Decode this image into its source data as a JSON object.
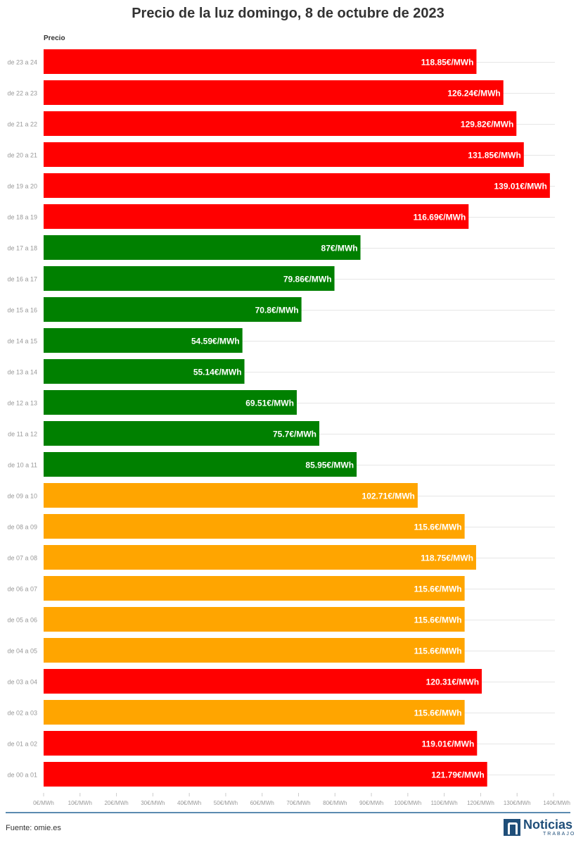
{
  "colors": {
    "red": "#ff0000",
    "green": "#008000",
    "orange": "#ffa500",
    "grid": "#e6e6e6",
    "text_muted": "#999999"
  },
  "chart_data": {
    "type": "bar",
    "orientation": "horizontal",
    "title": "Precio de la luz domingo, 8 de octubre de 2023",
    "series_label": "Precio",
    "xlim": [
      0,
      140
    ],
    "x_ticks": [
      0,
      10,
      20,
      30,
      40,
      50,
      60,
      70,
      80,
      90,
      100,
      110,
      120,
      130,
      140
    ],
    "x_tick_labels": [
      "0€/MWh",
      "10€/MWh",
      "20€/MWh",
      "30€/MWh",
      "40€/MWh",
      "50€/MWh",
      "60€/MWh",
      "70€/MWh",
      "80€/MWh",
      "90€/MWh",
      "100€/MWh",
      "110€/MWh",
      "120€/MWh",
      "130€/MWh",
      "140€/MWh"
    ],
    "grid": true,
    "categories": [
      "de 23 a 24",
      "de 22 a 23",
      "de 21 a 22",
      "de 20 a 21",
      "de 19 a 20",
      "de 18 a 19",
      "de 17 a 18",
      "de 16 a 17",
      "de 15 a 16",
      "de 14 a 15",
      "de 13 a 14",
      "de 12 a 13",
      "de 11 a 12",
      "de 10 a 11",
      "de 09 a 10",
      "de 08 a 09",
      "de 07 a 08",
      "de 06 a 07",
      "de 05 a 06",
      "de 04 a 05",
      "de 03 a 04",
      "de 02 a 03",
      "de 01 a 02",
      "de 00 a 01"
    ],
    "values": [
      118.85,
      126.24,
      129.82,
      131.85,
      139.01,
      116.69,
      87,
      79.86,
      70.8,
      54.59,
      55.14,
      69.51,
      75.7,
      85.95,
      102.71,
      115.6,
      118.75,
      115.6,
      115.6,
      115.6,
      120.31,
      115.6,
      119.01,
      121.79
    ],
    "value_labels": [
      "118.85€/MWh",
      "126.24€/MWh",
      "129.82€/MWh",
      "131.85€/MWh",
      "139.01€/MWh",
      "116.69€/MWh",
      "87€/MWh",
      "79.86€/MWh",
      "70.8€/MWh",
      "54.59€/MWh",
      "55.14€/MWh",
      "69.51€/MWh",
      "75.7€/MWh",
      "85.95€/MWh",
      "102.71€/MWh",
      "115.6€/MWh",
      "118.75€/MWh",
      "115.6€/MWh",
      "115.6€/MWh",
      "115.6€/MWh",
      "120.31€/MWh",
      "115.6€/MWh",
      "119.01€/MWh",
      "121.79€/MWh"
    ],
    "bar_colors": [
      "red",
      "red",
      "red",
      "red",
      "red",
      "red",
      "green",
      "green",
      "green",
      "green",
      "green",
      "green",
      "green",
      "green",
      "orange",
      "orange",
      "orange",
      "orange",
      "orange",
      "orange",
      "red",
      "orange",
      "red",
      "red"
    ]
  },
  "footer": {
    "source": "Fuente: omie.es",
    "logo_name": "Noticias",
    "logo_sub": "TRABAJO"
  }
}
